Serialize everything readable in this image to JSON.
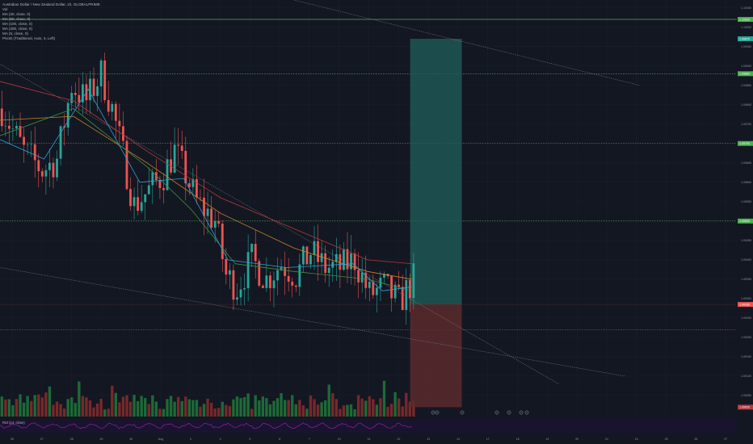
{
  "legend": {
    "title": "Australian Dollar / New Zealand Dollar, 1h, GLOBALPRIME",
    "lines": [
      "Vol",
      "MA (20, close, 0)",
      "MA (50, close, 0)",
      "MA (100, close, 0)",
      "MA (200, close, 0)",
      "MA (5, close, 0)",
      "Pivots (Traditional, Auto, 3, Left)"
    ]
  },
  "rsi_label": "RSI (14, close)",
  "colors": {
    "background": "#131722",
    "up": "#26a69a",
    "down": "#ef5350",
    "vol_up": "#1e7a3a",
    "vol_down": "#8c2b2b",
    "ma_blue": "#2aa1d8",
    "ma_orange": "#c8822b",
    "ma_red": "#b33a3a",
    "ma_green": "#3e8f3e",
    "pivot_green": "#4caf50",
    "rsi_purple": "#9c27b0"
  },
  "chart_data": {
    "type": "candlestick",
    "title": "Australian Dollar / New Zealand Dollar, 1h, GLOBALPRIME",
    "timeframe": "1h",
    "x_ticks": [
      "26",
      "27",
      "28",
      "29",
      "30",
      "Aug",
      "3",
      "4",
      "5",
      "6",
      "7",
      "10",
      "11",
      "12",
      "13",
      "14",
      "17",
      "18",
      "19",
      "20",
      "21",
      "24",
      "25",
      "26",
      "27"
    ],
    "y_ticks": [
      "1.10050",
      "1.10000",
      "1.09950",
      "1.09900",
      "1.09850",
      "1.09800",
      "1.09750",
      "1.09700",
      "1.09650",
      "1.09600",
      "1.09550",
      "1.09500",
      "1.09450",
      "1.09400",
      "1.09350",
      "1.09300",
      "1.09250",
      "1.09200",
      "1.09150",
      "1.09100",
      "1.09050"
    ],
    "ylim": [
      1.09,
      1.1007
    ],
    "price_path": [
      [
        0,
        1.0979
      ],
      [
        6,
        1.0968
      ],
      [
        11,
        1.0963
      ],
      [
        15,
        1.0966
      ],
      [
        19,
        1.0985
      ],
      [
        23,
        1.0981
      ],
      [
        27,
        1.0988
      ],
      [
        30,
        1.0979
      ],
      [
        33,
        1.0967
      ],
      [
        36,
        1.0954
      ],
      [
        40,
        1.0958
      ],
      [
        44,
        1.0962
      ],
      [
        47,
        1.0968
      ],
      [
        50,
        1.0962
      ],
      [
        53,
        1.0955
      ],
      [
        58,
        1.095
      ],
      [
        61,
        1.0936
      ],
      [
        64,
        1.0933
      ],
      [
        68,
        1.094
      ],
      [
        72,
        1.0935
      ],
      [
        76,
        1.0939
      ],
      [
        80,
        1.0936
      ],
      [
        84,
        1.0942
      ],
      [
        88,
        1.0938
      ],
      [
        92,
        1.0938
      ],
      [
        96,
        1.094
      ],
      [
        100,
        1.0931
      ],
      [
        104,
        1.0933
      ],
      [
        108,
        1.0929
      ],
      [
        112,
        1.0935
      ]
    ],
    "moving_averages": [
      {
        "name": "MA (200, close, 0)",
        "values": [
          [
            0,
            1.0986
          ],
          [
            20,
            1.0981
          ],
          [
            40,
            1.0968
          ],
          [
            60,
            1.0956
          ],
          [
            80,
            1.0948
          ],
          [
            100,
            1.094
          ],
          [
            112,
            1.0939
          ]
        ]
      },
      {
        "name": "MA (100, close, 0)",
        "values": [
          [
            0,
            1.0976
          ],
          [
            20,
            1.0977
          ],
          [
            40,
            1.0965
          ],
          [
            60,
            1.0952
          ],
          [
            80,
            1.0943
          ],
          [
            100,
            1.0937
          ],
          [
            112,
            1.0935
          ]
        ]
      },
      {
        "name": "MA (50, close, 0)",
        "values": [
          [
            0,
            1.0972
          ],
          [
            20,
            1.0979
          ],
          [
            40,
            1.0964
          ],
          [
            52,
            1.0953
          ],
          [
            64,
            1.0939
          ],
          [
            80,
            1.0937
          ],
          [
            100,
            1.0935
          ],
          [
            112,
            1.0932
          ]
        ]
      },
      {
        "name": "MA (20, close, 0)",
        "values": [
          [
            0,
            1.0971
          ],
          [
            12,
            1.0966
          ],
          [
            24,
            1.0984
          ],
          [
            38,
            1.096
          ],
          [
            50,
            1.0961
          ],
          [
            62,
            1.094
          ],
          [
            78,
            1.0938
          ],
          [
            96,
            1.0939
          ],
          [
            104,
            1.0932
          ],
          [
            112,
            1.0933
          ]
        ]
      }
    ],
    "pivot_levels": [
      1.0988,
      1.097,
      1.095,
      1.0922
    ],
    "top_level": 1.1002,
    "current_price": 1.09285,
    "position": {
      "type": "long",
      "entry": 1.09285,
      "target": 1.0997,
      "stop": 1.0902
    },
    "trendlines": [
      {
        "from": [
          -12,
          1.0997
        ],
        "to": [
          152,
          1.0908
        ]
      },
      {
        "from": [
          -6,
          1.0939
        ],
        "to": [
          170,
          1.091
        ]
      },
      {
        "from": [
          50,
          1.1014
        ],
        "to": [
          174,
          1.0985
        ]
      }
    ],
    "volume_range": [
      0,
      100
    ],
    "rsi_levels": [
      70,
      30
    ]
  }
}
